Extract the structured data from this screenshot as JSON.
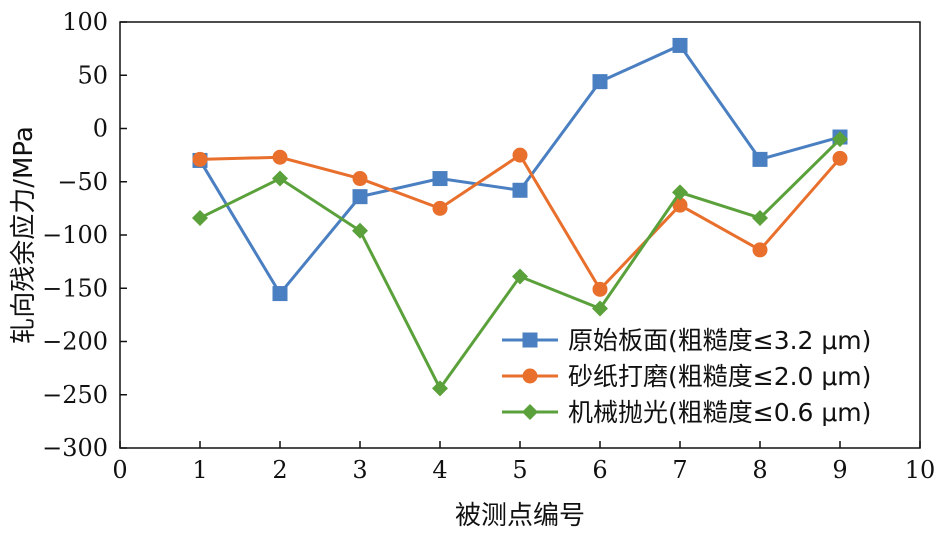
{
  "chart_data": {
    "type": "line",
    "title": "",
    "xlabel": "被测点编号",
    "ylabel": "轧向残余应力/MPa",
    "xlim": [
      0,
      10
    ],
    "ylim": [
      -300,
      100
    ],
    "xticks": [
      0,
      1,
      2,
      3,
      4,
      5,
      6,
      7,
      8,
      9,
      10
    ],
    "yticks": [
      100,
      50,
      0,
      -50,
      -100,
      -150,
      -200,
      -250,
      -300
    ],
    "x": [
      1,
      2,
      3,
      4,
      5,
      6,
      7,
      8,
      9
    ],
    "grid": false,
    "legend_position": "bottom-right",
    "series": [
      {
        "name": "原始板面(粗糙度≤3.2 μm)",
        "marker": "square",
        "color": "#4a7fc1",
        "values": [
          -30,
          -155,
          -64,
          -47,
          -58,
          44,
          78,
          -29,
          -8
        ]
      },
      {
        "name": "砂纸打磨(粗糙度≤2.0 μm)",
        "marker": "circle",
        "color": "#e86f2c",
        "values": [
          -29,
          -27,
          -47,
          -75,
          -25,
          -151,
          -72,
          -114,
          -28
        ]
      },
      {
        "name": "机械抛光(粗糙度≤0.6 μm)",
        "marker": "diamond",
        "color": "#5aa13b",
        "values": [
          -84,
          -47,
          -96,
          -244,
          -139,
          -169,
          -60,
          -84,
          -10
        ]
      }
    ]
  }
}
